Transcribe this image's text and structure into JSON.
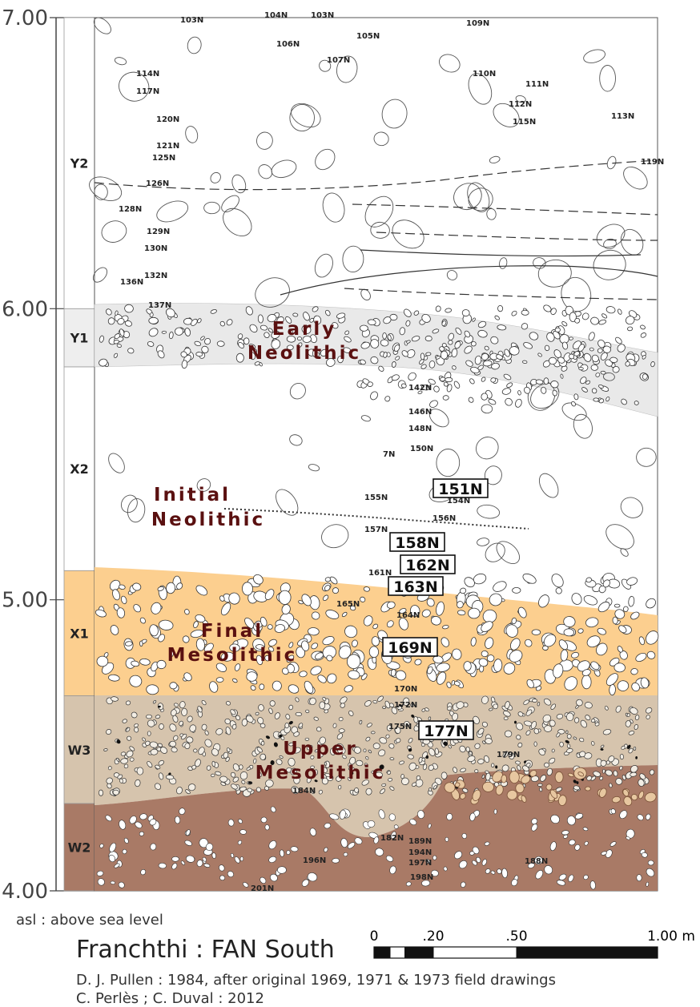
{
  "axis": {
    "ticks": [
      {
        "label": "7.00",
        "value": 7.0
      },
      {
        "label": "6.00",
        "value": 6.0
      },
      {
        "label": "5.00",
        "value": 5.0
      },
      {
        "label": "4.00",
        "value": 4.0
      }
    ],
    "range": [
      4.0,
      7.0
    ]
  },
  "strata": [
    {
      "label": "Y2",
      "top": 7.0,
      "bottom": 6.0,
      "color": "#ffffff"
    },
    {
      "label": "Y1",
      "top": 6.0,
      "bottom": 5.8,
      "color": "#eeeeee"
    },
    {
      "label": "X2",
      "top": 5.8,
      "bottom": 5.1,
      "color": "#ffffff"
    },
    {
      "label": "X1",
      "top": 5.1,
      "bottom": 4.67,
      "color": "#fccf8f"
    },
    {
      "label": "W3",
      "top": 4.67,
      "bottom": 4.3,
      "color": "#d6c4ad"
    },
    {
      "label": "W2",
      "top": 4.3,
      "bottom": 4.0,
      "color": "#a97a66"
    }
  ],
  "periods": [
    {
      "line1": "Early",
      "line2": "Neolithic"
    },
    {
      "line1": "Initial",
      "line2": "Neolithic"
    },
    {
      "line1": "Final",
      "line2": "Mesolithic"
    },
    {
      "line1": "Upper",
      "line2": "Mesolithic"
    }
  ],
  "boxed_samples": [
    "151N",
    "158N",
    "162N",
    "163N",
    "169N",
    "177N"
  ],
  "samples": [
    "103N",
    "104N",
    "103N",
    "109N",
    "105N",
    "106N",
    "107N",
    "110N",
    "111N",
    "114N",
    "117N",
    "112N",
    "113N",
    "115N",
    "120N",
    "121N",
    "125N",
    "119N",
    "126N",
    "128N",
    "129N",
    "130N",
    "132N",
    "136N",
    "137N",
    "142N",
    "146N",
    "148N",
    "150N",
    "7N",
    "154N",
    "155N",
    "156N",
    "157N",
    "161N",
    "165N",
    "164N",
    "170N",
    "172N",
    "175N",
    "179N",
    "184N",
    "182N",
    "189N",
    "194N",
    "197N",
    "198N",
    "196N",
    "188N",
    "201N"
  ],
  "scale": {
    "labels": [
      "0",
      ".20",
      ".50",
      "1.00 m"
    ]
  },
  "footer": {
    "note": "asl : above sea level",
    "title": "Franchthi : FAN South",
    "credit_1": "D. J. Pullen : 1984, after original 1969, 1971 & 1973 field drawings",
    "credit_2": "C. Perlès ; C. Duval : 2012"
  },
  "colors": {
    "early_neolithic_fill": "#e9e9e9",
    "final_mesolithic_fill": "#fccf8f",
    "upper_mesolithic_fill": "#d6c4ad",
    "w2_fill": "#a97a66",
    "period_label": "#5a1010"
  }
}
